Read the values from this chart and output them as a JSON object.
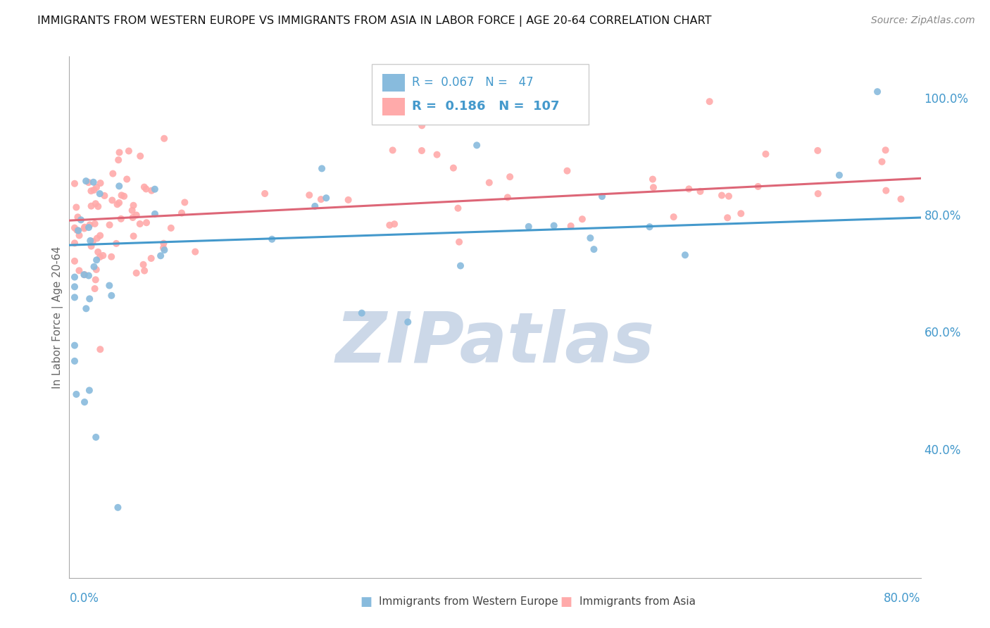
{
  "title": "IMMIGRANTS FROM WESTERN EUROPE VS IMMIGRANTS FROM ASIA IN LABOR FORCE | AGE 20-64 CORRELATION CHART",
  "source": "Source: ZipAtlas.com",
  "ylabel": "In Labor Force | Age 20-64",
  "legend_label1": "Immigrants from Western Europe",
  "legend_label2": "Immigrants from Asia",
  "R1": "0.067",
  "N1": "47",
  "R2": "0.186",
  "N2": "107",
  "blue_color": "#88bbdd",
  "pink_color": "#ffaaaa",
  "blue_line_color": "#4499cc",
  "pink_line_color": "#dd6677",
  "watermark_zip": "ZIP",
  "watermark_atlas": "atlas",
  "watermark_color": "#ccd8e8",
  "xmin": 0.0,
  "xmax": 0.8,
  "ymin": 0.18,
  "ymax": 1.07,
  "blue_trend_x0": 0.0,
  "blue_trend_y0": 0.748,
  "blue_trend_x1": 0.8,
  "blue_trend_y1": 0.795,
  "pink_trend_x0": 0.0,
  "pink_trend_y0": 0.79,
  "pink_trend_x1": 0.8,
  "pink_trend_y1": 0.862,
  "right_ytick_vals": [
    0.4,
    0.6,
    0.8,
    1.0
  ],
  "right_ytick_labels": [
    "40.0%",
    "60.0%",
    "80.0%",
    "100.0%"
  ]
}
